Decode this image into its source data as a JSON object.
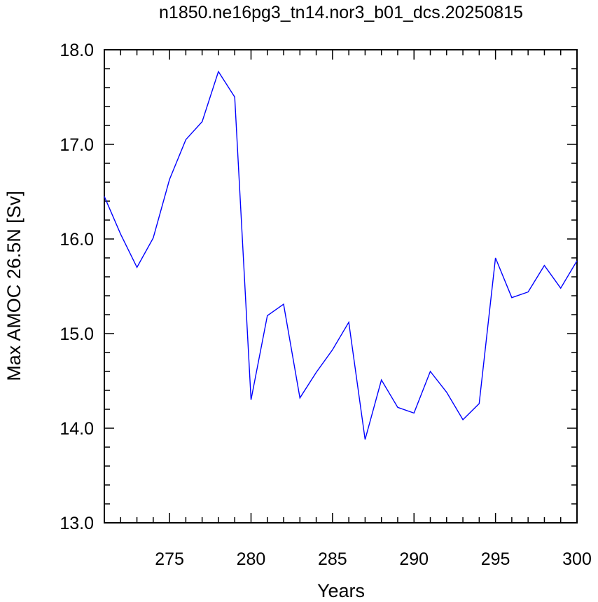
{
  "chart_data": {
    "type": "line",
    "title": "n1850.ne16pg3_tn14.nor3_b01_dcs.20250815",
    "xlabel": "Years",
    "ylabel": "Max AMOC 26.5N [Sv]",
    "xlim": [
      271,
      300
    ],
    "ylim": [
      13.0,
      18.0
    ],
    "x_ticks": [
      275,
      280,
      285,
      290,
      295,
      300
    ],
    "x_tick_labels": [
      "275",
      "280",
      "285",
      "290",
      "295",
      "300"
    ],
    "y_ticks": [
      13.0,
      14.0,
      15.0,
      16.0,
      17.0,
      18.0
    ],
    "y_tick_labels": [
      "13.0",
      "14.0",
      "15.0",
      "16.0",
      "17.0",
      "18.0"
    ],
    "grid": false,
    "series": [
      {
        "color": "#0000ff",
        "x": [
          271,
          272,
          273,
          274,
          275,
          276,
          277,
          278,
          279,
          280,
          281,
          282,
          283,
          284,
          285,
          286,
          287,
          288,
          289,
          290,
          291,
          292,
          293,
          294,
          295,
          296,
          297,
          298,
          299,
          300
        ],
        "values": [
          16.45,
          16.05,
          15.7,
          16.01,
          16.63,
          17.05,
          17.24,
          17.77,
          17.5,
          14.3,
          15.19,
          15.31,
          14.32,
          14.59,
          14.83,
          15.12,
          13.88,
          14.51,
          14.22,
          14.16,
          14.6,
          14.38,
          14.09,
          14.26,
          15.8,
          15.38,
          15.44,
          15.72,
          15.48,
          15.77
        ]
      }
    ]
  }
}
